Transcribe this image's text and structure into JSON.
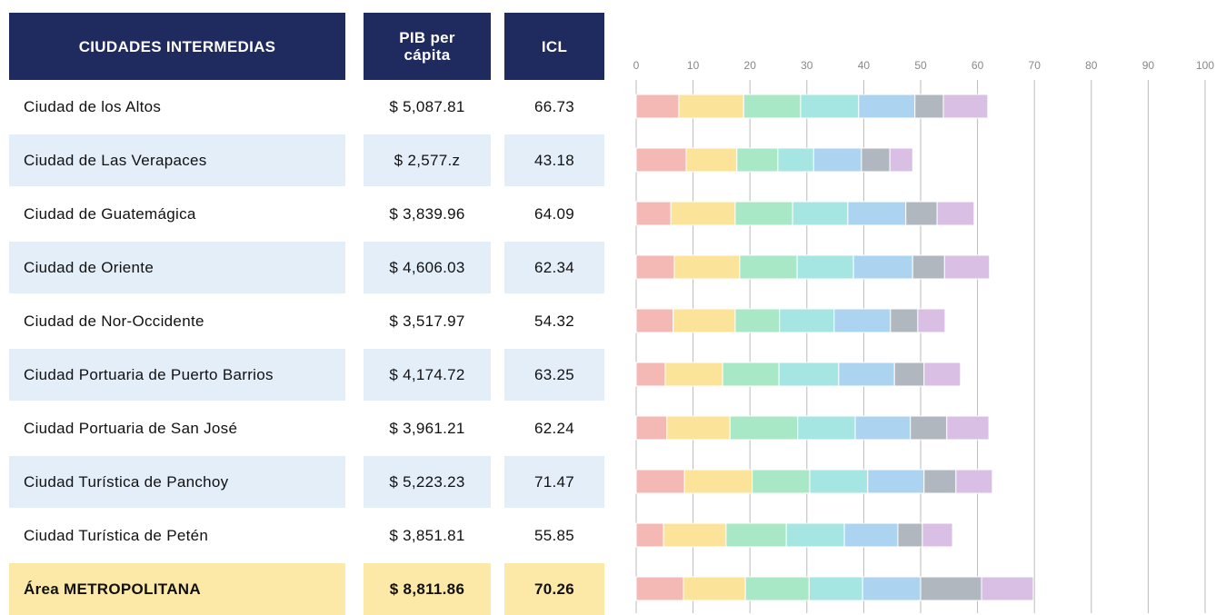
{
  "table": {
    "header": [
      "CIUDADES INTERMEDIAS",
      "PIB per cápita",
      "ICL"
    ],
    "rows": [
      [
        "Ciudad de los Altos",
        "$ 5,087.81",
        "66.73"
      ],
      [
        "Ciudad de Las Verapaces",
        "$ 2,577.z",
        "43.18"
      ],
      [
        "Ciudad de Guatemágica",
        "$ 3,839.96",
        "64.09"
      ],
      [
        "Ciudad de Oriente",
        "$ 4,606.03",
        "62.34"
      ],
      [
        "Ciudad de Nor-Occidente",
        "$ 3,517.97",
        "54.32"
      ],
      [
        "Ciudad Portuaria de Puerto Barrios",
        "$ 4,174.72",
        "63.25"
      ],
      [
        "Ciudad Portuaria de San José",
        "$ 3,961.21",
        "62.24"
      ],
      [
        "Ciudad Turística de Panchoy",
        "$ 5,223.23",
        "71.47"
      ],
      [
        "Ciudad Turística de Petén",
        "$ 3,851.81",
        "55.85"
      ],
      [
        "Área METROPOLITANA",
        "$ 8,811.86",
        "70.26"
      ]
    ]
  },
  "chart_data": {
    "type": "bar",
    "orientation": "horizontal",
    "stacked": true,
    "xlim": [
      0,
      100
    ],
    "xticks": [
      0,
      10,
      20,
      30,
      40,
      50,
      60,
      70,
      80,
      90,
      100
    ],
    "grid": true,
    "series": [
      {
        "color": "#f4b8b5",
        "values": [
          7.5,
          8.8,
          6.1,
          6.7,
          6.5,
          5.1,
          5.4,
          8.5,
          4.8,
          8.3
        ]
      },
      {
        "color": "#fbe49a",
        "values": [
          11.4,
          8.9,
          11.3,
          11.5,
          10.9,
          10.1,
          11.1,
          11.9,
          11.0,
          10.9
        ]
      },
      {
        "color": "#a8e8c6",
        "values": [
          10.0,
          7.2,
          10.1,
          10.1,
          7.8,
          9.9,
          11.9,
          10.1,
          10.6,
          11.2
        ]
      },
      {
        "color": "#a6e6e2",
        "values": [
          10.2,
          6.3,
          9.7,
          9.9,
          9.6,
          10.5,
          10.1,
          10.2,
          10.2,
          9.4
        ]
      },
      {
        "color": "#acd4f0",
        "values": [
          9.9,
          8.4,
          10.2,
          10.4,
          9.9,
          9.8,
          9.7,
          9.9,
          9.4,
          10.2
        ]
      },
      {
        "color": "#b0b7bf",
        "values": [
          5.0,
          5.0,
          5.5,
          5.6,
          4.8,
          5.2,
          6.4,
          5.6,
          4.3,
          10.7
        ]
      },
      {
        "color": "#d8bfe3",
        "values": [
          7.8,
          4.0,
          6.5,
          7.9,
          4.8,
          6.4,
          7.4,
          6.4,
          5.3,
          9.1
        ]
      }
    ]
  }
}
